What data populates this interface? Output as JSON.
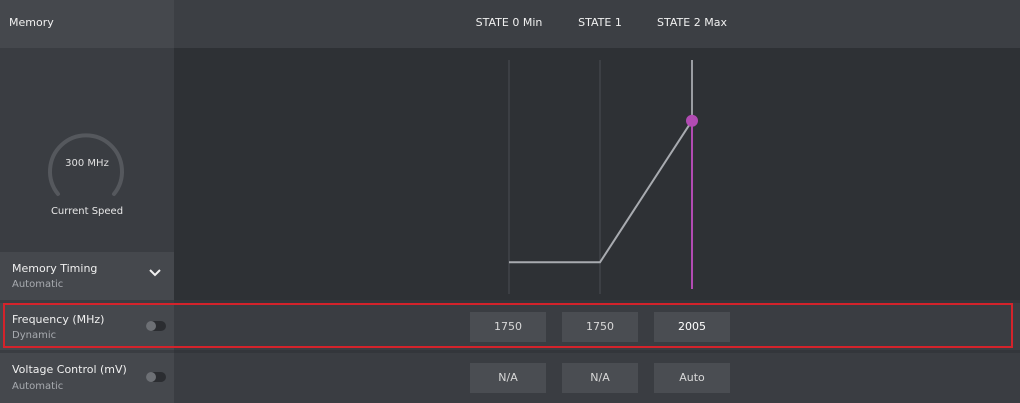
{
  "header": {
    "title": "Memory",
    "states": [
      {
        "label": "STATE 0 Min"
      },
      {
        "label": "STATE 1"
      },
      {
        "label": "STATE 2 Max"
      }
    ]
  },
  "gauge": {
    "value": "300 MHz",
    "label": "Current Speed"
  },
  "rows": {
    "memory_timing": {
      "title": "Memory Timing",
      "subtitle": "Automatic"
    },
    "frequency": {
      "title": "Frequency (MHz)",
      "subtitle": "Dynamic",
      "values": [
        "1750",
        "1750",
        "2005"
      ]
    },
    "voltage": {
      "title": "Voltage Control (mV)",
      "subtitle": "Automatic",
      "values": [
        "N/A",
        "N/A",
        "Auto"
      ]
    }
  },
  "graph": {
    "point_frequencies": [
      1750,
      1750,
      2005
    ],
    "frequency_range": [
      1700,
      2100
    ]
  },
  "colors": {
    "accent": "#b24bb3",
    "highlight": "#d4232b"
  }
}
